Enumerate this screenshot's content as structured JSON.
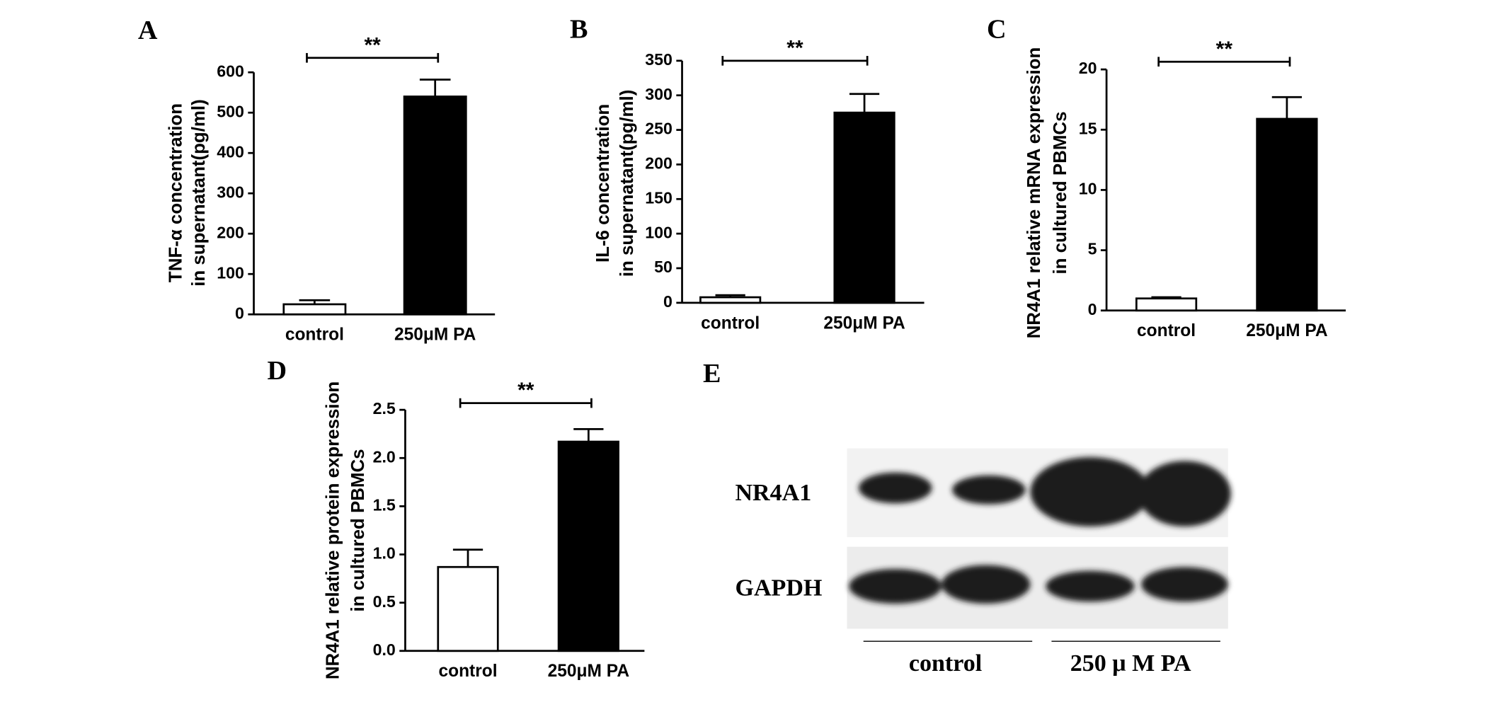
{
  "chart_data": [
    {
      "type": "bar",
      "panel": "A",
      "y_label": [
        "TNF-α concentration",
        "in supernatant(pg/ml)"
      ],
      "categories": [
        "control",
        "250μM PA"
      ],
      "values": [
        25,
        540
      ],
      "errors": [
        10,
        42
      ],
      "colors": [
        "#ffffff",
        "#000000"
      ],
      "significance": "**",
      "ylim": [
        0,
        600
      ],
      "yticks": [
        0,
        100,
        200,
        300,
        400,
        500,
        600
      ]
    },
    {
      "type": "bar",
      "panel": "B",
      "y_label": [
        "IL-6 concentration",
        "in supernatant(pg/ml)"
      ],
      "categories": [
        "control",
        "250μM PA"
      ],
      "values": [
        8,
        275
      ],
      "errors": [
        3,
        27
      ],
      "colors": [
        "#ffffff",
        "#000000"
      ],
      "significance": "**",
      "ylim": [
        0,
        350
      ],
      "yticks": [
        0,
        50,
        100,
        150,
        200,
        250,
        300,
        350
      ]
    },
    {
      "type": "bar",
      "panel": "C",
      "y_label": [
        "NR4A1  relative  mRNA expression",
        "in cultured PBMCs"
      ],
      "categories": [
        "control",
        "250μM PA"
      ],
      "values": [
        1,
        15.9
      ],
      "errors": [
        0.1,
        1.8
      ],
      "colors": [
        "#ffffff",
        "#000000"
      ],
      "significance": "**",
      "ylim": [
        0,
        20
      ],
      "yticks": [
        0,
        5,
        10,
        15,
        20
      ]
    },
    {
      "type": "bar",
      "panel": "D",
      "y_label": [
        "NR4A1 relative protein expression",
        "in cultured PBMCs"
      ],
      "categories": [
        "control",
        "250μM PA"
      ],
      "values": [
        0.87,
        2.17
      ],
      "errors": [
        0.18,
        0.13
      ],
      "colors": [
        "#ffffff",
        "#000000"
      ],
      "significance": "**",
      "ylim": [
        0,
        2.5
      ],
      "yticks": [
        {
          "value": 0,
          "label": "0.0"
        },
        0.5,
        {
          "value": 1,
          "label": "1.0"
        },
        1.5,
        {
          "value": 2,
          "label": "2.0"
        },
        2.5
      ]
    }
  ],
  "blot": {
    "panel": "E",
    "rows": [
      "NR4A1",
      "GAPDH"
    ],
    "groups": [
      "control",
      "250 μ M PA"
    ]
  }
}
